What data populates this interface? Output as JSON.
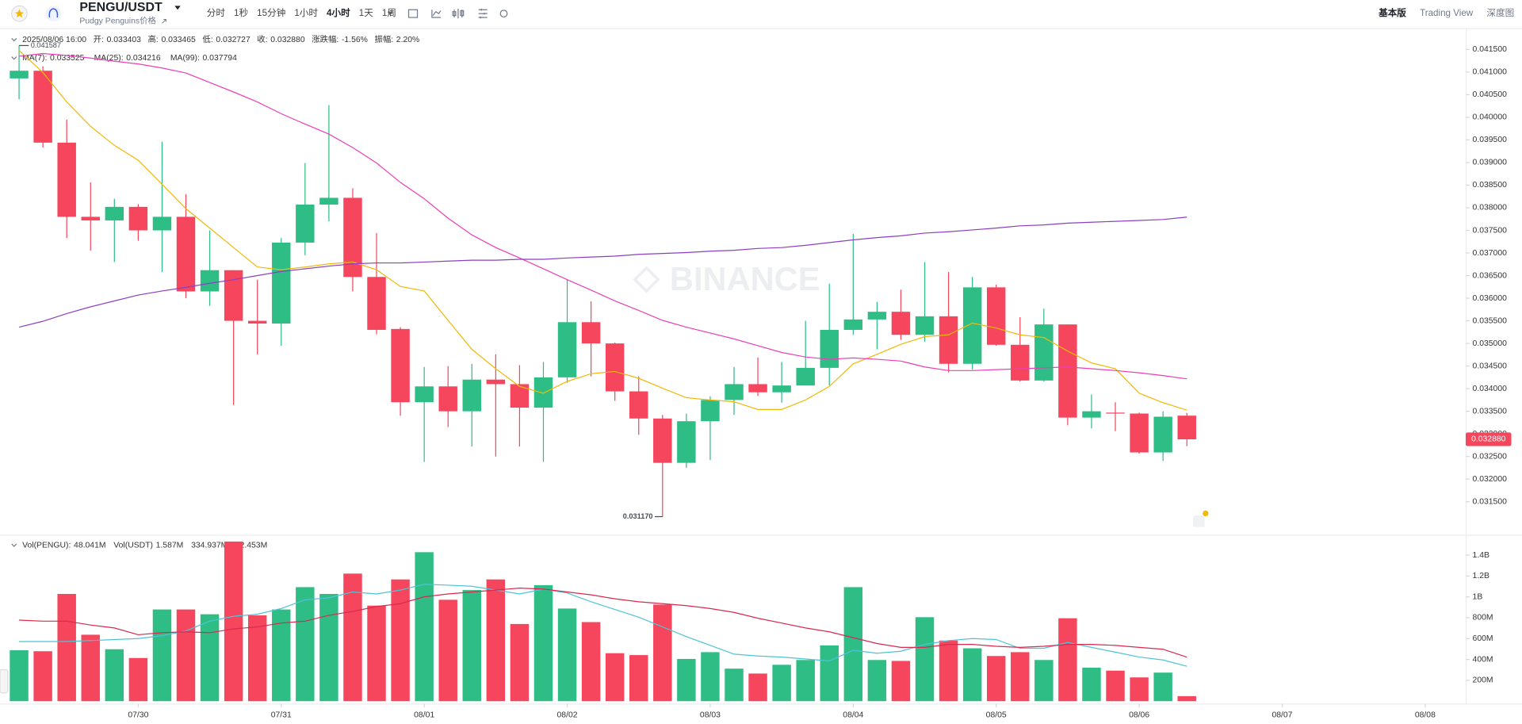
{
  "toolbar": {
    "symbol": "PENGU/USDT",
    "subtitle": "Pudgy Penguins价格",
    "intervals": [
      "分时",
      "1秒",
      "15分钟",
      "1小时",
      "4小时",
      "1天",
      "1周"
    ],
    "views": [
      "基本版",
      "Trading View",
      "深度图"
    ]
  },
  "info": {
    "date": "2025/08/06 16:00",
    "fields": [
      {
        "label": "开:",
        "value": "0.033403"
      },
      {
        "label": "高:",
        "value": "0.033465"
      },
      {
        "label": "低:",
        "value": "0.032727"
      },
      {
        "label": "收:",
        "value": "0.032880"
      },
      {
        "label": "涨跌幅:",
        "value": "-1.56%"
      },
      {
        "label": "振幅:",
        "value": "2.20%"
      }
    ]
  },
  "chart_data": [
    {
      "type": "candlestick",
      "watermark": "BINANCE",
      "up_color": "#2ebd85",
      "down_color": "#f6465d",
      "high_label": "0.041587",
      "low_label": "0.031170",
      "last_price_label": "0.032880",
      "xlim": [
        -0.8,
        60.7
      ],
      "xticks": [
        {
          "value": 5,
          "label": "07/30"
        },
        {
          "value": 11,
          "label": "07/31"
        },
        {
          "value": 17,
          "label": "08/01"
        },
        {
          "value": 23,
          "label": "08/02"
        },
        {
          "value": 29,
          "label": "08/03"
        },
        {
          "value": 35,
          "label": "08/04"
        },
        {
          "value": 41,
          "label": "08/05"
        },
        {
          "value": 47,
          "label": "08/06"
        },
        {
          "value": 53,
          "label": "08/07"
        },
        {
          "value": 59,
          "label": "08/08"
        }
      ],
      "ylim": [
        0.030834,
        0.0418
      ],
      "yticks": [
        {
          "value": 0.0315,
          "label": "0.031500"
        },
        {
          "value": 0.032,
          "label": "0.032000"
        },
        {
          "value": 0.0325,
          "label": "0.032500"
        },
        {
          "value": 0.033,
          "label": "0.033000"
        },
        {
          "value": 0.0335,
          "label": "0.033500"
        },
        {
          "value": 0.034,
          "label": "0.034000"
        },
        {
          "value": 0.0345,
          "label": "0.034500"
        },
        {
          "value": 0.035,
          "label": "0.035000"
        },
        {
          "value": 0.0355,
          "label": "0.035500"
        },
        {
          "value": 0.036,
          "label": "0.036000"
        },
        {
          "value": 0.0365,
          "label": "0.036500"
        },
        {
          "value": 0.037,
          "label": "0.037000"
        },
        {
          "value": 0.0375,
          "label": "0.037500"
        },
        {
          "value": 0.038,
          "label": "0.038000"
        },
        {
          "value": 0.0385,
          "label": "0.038500"
        },
        {
          "value": 0.039,
          "label": "0.039000"
        },
        {
          "value": 0.0395,
          "label": "0.039500"
        },
        {
          "value": 0.04,
          "label": "0.040000"
        },
        {
          "value": 0.0405,
          "label": "0.040500"
        },
        {
          "value": 0.041,
          "label": "0.041000"
        },
        {
          "value": 0.0415,
          "label": "0.041500"
        }
      ],
      "open": [
        0.04086,
        0.04103,
        0.03944,
        0.0378,
        0.03772,
        0.03802,
        0.0375,
        0.0378,
        0.03615,
        0.03662,
        0.0355,
        0.03544,
        0.03723,
        0.03807,
        0.03822,
        0.03647,
        0.03532,
        0.0337,
        0.03405,
        0.0335,
        0.0342,
        0.0341,
        0.03358,
        0.03425,
        0.03547,
        0.035,
        0.03394,
        0.03334,
        0.03236,
        0.03328,
        0.03375,
        0.0341,
        0.03392,
        0.03407,
        0.03446,
        0.0353,
        0.03553,
        0.0357,
        0.03519,
        0.0356,
        0.03455,
        0.03624,
        0.03497,
        0.03418,
        0.03542,
        0.03336,
        0.03347,
        0.03345,
        0.03259,
        0.033403
      ],
      "high": [
        0.041587,
        0.04113,
        0.03995,
        0.03856,
        0.0382,
        0.03808,
        0.03946,
        0.0383,
        0.0375,
        0.03662,
        0.03641,
        0.03733,
        0.03899,
        0.04027,
        0.03843,
        0.03744,
        0.03536,
        0.03448,
        0.0345,
        0.03455,
        0.03476,
        0.03452,
        0.03459,
        0.03641,
        0.03593,
        0.03502,
        0.03427,
        0.03342,
        0.03345,
        0.03383,
        0.03448,
        0.03469,
        0.03459,
        0.0355,
        0.03632,
        0.03742,
        0.03592,
        0.03619,
        0.0368,
        0.03658,
        0.03647,
        0.0363,
        0.03558,
        0.03577,
        0.03542,
        0.03387,
        0.0337,
        0.03347,
        0.0335,
        0.033465
      ],
      "low": [
        0.0404,
        0.03933,
        0.03733,
        0.03705,
        0.0368,
        0.03727,
        0.03658,
        0.036,
        0.03583,
        0.03364,
        0.03476,
        0.03495,
        0.03695,
        0.0377,
        0.03615,
        0.0352,
        0.0334,
        0.03238,
        0.03315,
        0.03272,
        0.0325,
        0.03272,
        0.03238,
        0.03413,
        0.03427,
        0.03373,
        0.03298,
        0.03117,
        0.03225,
        0.03242,
        0.03342,
        0.03384,
        0.03369,
        0.03407,
        0.03407,
        0.03519,
        0.03487,
        0.03508,
        0.03504,
        0.03436,
        0.03442,
        0.03495,
        0.03416,
        0.03416,
        0.03319,
        0.03312,
        0.03306,
        0.03256,
        0.0324,
        0.032727
      ],
      "close": [
        0.04103,
        0.03944,
        0.0378,
        0.03772,
        0.03802,
        0.0375,
        0.0378,
        0.03615,
        0.03662,
        0.0355,
        0.03544,
        0.03723,
        0.03807,
        0.03822,
        0.03647,
        0.0353,
        0.0337,
        0.03405,
        0.0335,
        0.0342,
        0.0341,
        0.03358,
        0.03425,
        0.03547,
        0.035,
        0.03394,
        0.03334,
        0.03236,
        0.03328,
        0.03375,
        0.0341,
        0.03392,
        0.03407,
        0.03446,
        0.0353,
        0.03553,
        0.0357,
        0.03519,
        0.0356,
        0.03455,
        0.03624,
        0.03497,
        0.03418,
        0.03542,
        0.03336,
        0.0335,
        0.03345,
        0.03259,
        0.03338,
        0.03288
      ],
      "series": [
        {
          "name": "MA(7):",
          "legend_value": "0.033525",
          "color": "#f0b90b",
          "values": [
            0.04148,
            0.04099,
            0.04034,
            0.0398,
            0.03938,
            0.03905,
            0.03852,
            0.03798,
            0.03755,
            0.03712,
            0.03669,
            0.03663,
            0.03669,
            0.03676,
            0.0368,
            0.03663,
            0.03626,
            0.03616,
            0.03551,
            0.03487,
            0.03444,
            0.03405,
            0.0339,
            0.03416,
            0.03433,
            0.03438,
            0.03423,
            0.03401,
            0.0338,
            0.03375,
            0.03371,
            0.03354,
            0.03354,
            0.03375,
            0.03405,
            0.03455,
            0.03476,
            0.03498,
            0.03515,
            0.03519,
            0.03545,
            0.03534,
            0.03519,
            0.03513,
            0.03483,
            0.03457,
            0.03444,
            0.0339,
            0.03369,
            0.033525
          ]
        },
        {
          "name": "MA(25):",
          "legend_value": "0.034216",
          "color": "#eb40b5",
          "values": [
            0.04135,
            0.04141,
            0.04137,
            0.04131,
            0.04124,
            0.04118,
            0.04109,
            0.04098,
            0.04077,
            0.04056,
            0.04034,
            0.04008,
            0.03985,
            0.03963,
            0.03933,
            0.03899,
            0.03856,
            0.0382,
            0.03777,
            0.0374,
            0.03712,
            0.03689,
            0.03665,
            0.03641,
            0.03618,
            0.03594,
            0.03573,
            0.03551,
            0.03536,
            0.03523,
            0.0351,
            0.03495,
            0.0348,
            0.0347,
            0.03465,
            0.03468,
            0.03465,
            0.03461,
            0.03448,
            0.0344,
            0.0344,
            0.03442,
            0.03444,
            0.03446,
            0.03448,
            0.03444,
            0.0344,
            0.03435,
            0.03429,
            0.034216
          ]
        },
        {
          "name": "MA(99):",
          "legend_value": "0.037794",
          "color": "#8c3fc1",
          "values": [
            0.03536,
            0.03549,
            0.03566,
            0.03581,
            0.03594,
            0.03607,
            0.03616,
            0.03624,
            0.03633,
            0.03641,
            0.0365,
            0.03659,
            0.03665,
            0.03671,
            0.03676,
            0.03678,
            0.03678,
            0.0368,
            0.03682,
            0.03684,
            0.03684,
            0.03686,
            0.03686,
            0.03689,
            0.03691,
            0.03693,
            0.03697,
            0.03699,
            0.03701,
            0.03704,
            0.03706,
            0.0371,
            0.03712,
            0.03717,
            0.03723,
            0.03729,
            0.03734,
            0.03738,
            0.03744,
            0.03747,
            0.03751,
            0.03755,
            0.0376,
            0.03762,
            0.03766,
            0.03768,
            0.0377,
            0.03772,
            0.03774,
            0.037794
          ]
        }
      ]
    },
    {
      "type": "bar",
      "legend": [
        {
          "name": "Vol(PENGU):",
          "value": "48.041M"
        },
        {
          "name": "Vol(USDT)",
          "value": "1.587M"
        }
      ],
      "ylim": [
        0,
        1558
      ],
      "yticks": [
        {
          "value": 200,
          "label": "200M"
        },
        {
          "value": 400,
          "label": "400M"
        },
        {
          "value": 600,
          "label": "600M"
        },
        {
          "value": 800,
          "label": "800M"
        },
        {
          "value": 1000,
          "label": "1B"
        },
        {
          "value": 1200,
          "label": "1.2B"
        },
        {
          "value": 1400,
          "label": "1.4B"
        }
      ],
      "values": [
        488,
        479,
        1028,
        637,
        498,
        414,
        879,
        879,
        833,
        1530,
        823,
        879,
        1093,
        1028,
        1223,
        916,
        1167,
        1428,
        972,
        1065,
        1167,
        740,
        1112,
        888,
        758,
        460,
        442,
        926,
        405,
        470,
        312,
        265,
        349,
        395,
        535,
        1093,
        395,
        386,
        805,
        581,
        507,
        433,
        470,
        395,
        795,
        321,
        293,
        228,
        274,
        48.041
      ],
      "series": [
        {
          "legend_value": "334.937M",
          "color": "#4fc3d6",
          "values": [
            572,
            572,
            572,
            581,
            591,
            600,
            628,
            674,
            767,
            814,
            833,
            888,
            972,
            991,
            1047,
            1028,
            1065,
            1121,
            1112,
            1102,
            1065,
            1028,
            1074,
            1037,
            953,
            879,
            805,
            712,
            619,
            535,
            451,
            433,
            423,
            405,
            386,
            488,
            460,
            479,
            544,
            581,
            600,
            591,
            507,
            507,
            563,
            516,
            470,
            423,
            395,
            334.937
          ]
        },
        {
          "legend_value": "422.453M",
          "color": "#d9294f",
          "values": [
            777,
            767,
            767,
            730,
            702,
            637,
            656,
            665,
            656,
            693,
            712,
            749,
            767,
            823,
            860,
            907,
            935,
            1000,
            1028,
            1047,
            1065,
            1084,
            1074,
            1047,
            1019,
            981,
            953,
            935,
            916,
            888,
            851,
            795,
            749,
            702,
            665,
            609,
            553,
            516,
            516,
            544,
            544,
            526,
            516,
            526,
            544,
            544,
            535,
            516,
            498,
            422.453
          ]
        }
      ]
    }
  ]
}
